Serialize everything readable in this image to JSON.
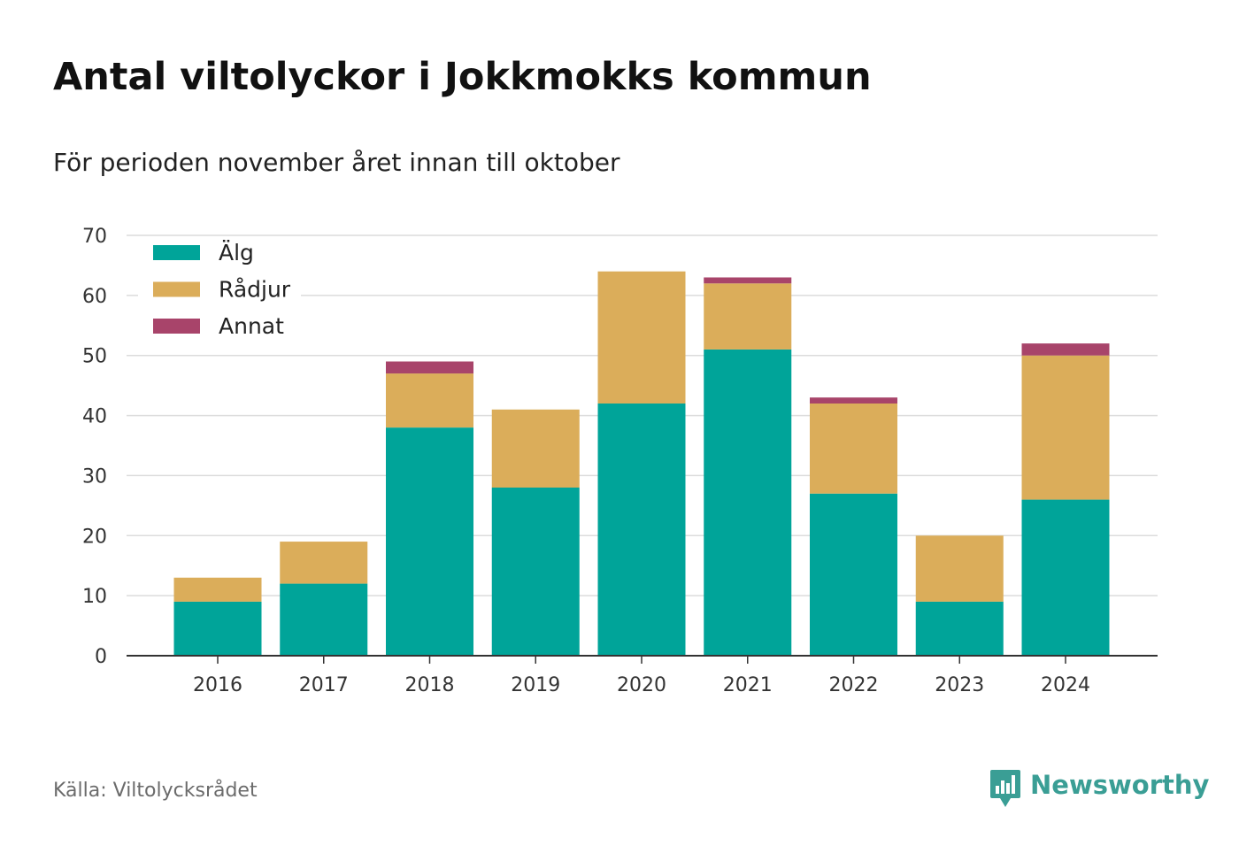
{
  "title": "Antal viltolyckor i Jokkmokks kommun",
  "subtitle": "För perioden november året innan till oktober",
  "source": "Källa: Viltolycksrådet",
  "brand": {
    "name": "Newsworthy",
    "icon": "newsworthy-logo-icon",
    "color": "#3a9e95"
  },
  "chart_data": {
    "type": "bar",
    "stacked": true,
    "categories": [
      "2016",
      "2017",
      "2018",
      "2019",
      "2020",
      "2021",
      "2022",
      "2023",
      "2024"
    ],
    "series": [
      {
        "name": "Älg",
        "color": "#00a499",
        "values": [
          9,
          12,
          38,
          28,
          42,
          51,
          27,
          9,
          26
        ]
      },
      {
        "name": "Rådjur",
        "color": "#dbad5a",
        "values": [
          4,
          7,
          9,
          13,
          22,
          11,
          15,
          11,
          24
        ]
      },
      {
        "name": "Annat",
        "color": "#a8446a",
        "values": [
          0,
          0,
          2,
          0,
          0,
          1,
          1,
          0,
          2
        ]
      }
    ],
    "ylim": [
      0,
      70
    ],
    "yticks": [
      "0",
      "10",
      "20",
      "30",
      "40",
      "50",
      "60",
      "70"
    ],
    "xlabel": "",
    "ylabel": "",
    "grid": true,
    "legend": "top-left"
  }
}
